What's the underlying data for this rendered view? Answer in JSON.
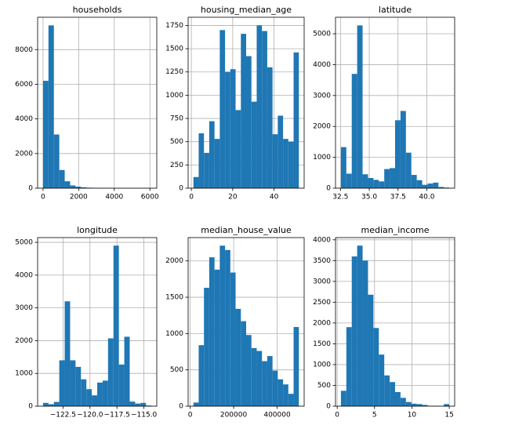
{
  "chart_data": [
    {
      "type": "histogram",
      "title": "households",
      "color": "#1f77b4",
      "grid": true,
      "bins": [
        1,
        305.05,
        609.1,
        913.15,
        1217.2,
        1521.25,
        1825.3,
        2129.35,
        2433.4,
        2737.45,
        3041.5,
        3345.55,
        3649.6,
        3953.65,
        4257.7,
        4561.75,
        4865.8,
        5169.85,
        5473.9,
        5777.95,
        6082
      ],
      "values": [
        6200,
        9400,
        3100,
        1050,
        400,
        160,
        90,
        50,
        30,
        20,
        15,
        10,
        8,
        6,
        4,
        3,
        2,
        1,
        1,
        1
      ],
      "xlim": [
        -303,
        6386
      ],
      "xticks": [
        0,
        2000,
        4000,
        6000
      ],
      "ylim": [
        0,
        9870
      ],
      "yticks": [
        0,
        2000,
        4000,
        6000,
        8000
      ]
    },
    {
      "type": "histogram",
      "title": "housing_median_age",
      "color": "#1f77b4",
      "grid": true,
      "bins": [
        1,
        3.55,
        6.1,
        8.65,
        11.2,
        13.75,
        16.3,
        18.85,
        21.4,
        23.95,
        26.5,
        29.05,
        31.6,
        34.15,
        36.7,
        39.25,
        41.8,
        44.35,
        46.9,
        49.45,
        52
      ],
      "values": [
        120,
        590,
        380,
        720,
        530,
        1700,
        1250,
        1280,
        840,
        1660,
        1420,
        930,
        1750,
        1690,
        1300,
        580,
        780,
        530,
        500,
        1460
      ],
      "xlim": [
        -1.55,
        54.55
      ],
      "xticks": [
        0,
        20,
        40
      ],
      "ylim": [
        0,
        1838
      ],
      "yticks": [
        0,
        250,
        500,
        750,
        1000,
        1250,
        1500,
        1750
      ]
    },
    {
      "type": "histogram",
      "title": "latitude",
      "color": "#1f77b4",
      "grid": true,
      "bins": [
        32.54,
        33.0105,
        33.481,
        33.9515,
        34.422,
        34.8925,
        35.363,
        35.8335,
        36.304,
        36.7745,
        37.245,
        37.7155,
        38.186,
        38.6565,
        39.127,
        39.5975,
        40.068,
        40.5385,
        41.009,
        41.4795,
        41.95
      ],
      "values": [
        1330,
        470,
        3700,
        5270,
        450,
        330,
        270,
        220,
        620,
        650,
        2200,
        2500,
        1150,
        430,
        260,
        110,
        150,
        180,
        40,
        20
      ],
      "xlim": [
        32.07,
        42.42
      ],
      "xticks": [
        32.5,
        {
          "value": 35,
          "label": "35.0"
        },
        37.5,
        {
          "value": 40,
          "label": "40.0"
        }
      ],
      "ylim": [
        0,
        5534
      ],
      "yticks": [
        0,
        1000,
        2000,
        3000,
        4000,
        5000
      ]
    },
    {
      "type": "histogram",
      "title": "longitude",
      "color": "#1f77b4",
      "grid": true,
      "bins": [
        -124.35,
        -123.848,
        -123.346,
        -122.844,
        -122.342,
        -121.84,
        -121.338,
        -120.836,
        -120.334,
        -119.832,
        -119.33,
        -118.828,
        -118.326,
        -117.824,
        -117.322,
        -116.82,
        -116.318,
        -115.816,
        -115.314,
        -114.812,
        -114.31
      ],
      "values": [
        100,
        60,
        130,
        1400,
        3200,
        1400,
        1200,
        820,
        520,
        330,
        720,
        780,
        2070,
        4900,
        1270,
        2120,
        140,
        80,
        100,
        20
      ],
      "xlim": [
        -124.85,
        -113.81
      ],
      "xticks": [
        {
          "value": -122.5,
          "label": "−122.5"
        },
        {
          "value": -120,
          "label": "−120.0"
        },
        {
          "value": -117.5,
          "label": "−117.5"
        },
        {
          "value": -115,
          "label": "−115.0"
        }
      ],
      "ylim": [
        0,
        5145
      ],
      "yticks": [
        0,
        1000,
        2000,
        3000,
        4000,
        5000
      ]
    },
    {
      "type": "histogram",
      "title": "median_house_value",
      "color": "#1f77b4",
      "grid": true,
      "bins": [
        14999,
        39249.1,
        63499.2,
        87749.3,
        111999.4,
        136249.5,
        160499.6,
        184749.7,
        208999.8,
        233249.9,
        257500,
        281750.1,
        306000.2,
        330250.3,
        354500.4,
        378750.5,
        403000.6,
        427250.7,
        451500.8,
        475750.9,
        500001
      ],
      "values": [
        50,
        840,
        1630,
        2050,
        1880,
        2210,
        2150,
        1840,
        1340,
        1170,
        980,
        800,
        760,
        620,
        690,
        490,
        370,
        300,
        170,
        1090
      ],
      "xlim": [
        -9251,
        524251
      ],
      "xticks": [
        0,
        200000,
        400000
      ],
      "ylim": [
        0,
        2321
      ],
      "yticks": [
        0,
        500,
        1000,
        1500,
        2000
      ]
    },
    {
      "type": "histogram",
      "title": "median_income",
      "color": "#1f77b4",
      "grid": true,
      "bins": [
        0.4999,
        1.22491,
        1.94992,
        2.67493,
        3.39994,
        4.12495,
        4.84996,
        5.57497,
        6.29998,
        7.02499,
        7.75,
        8.47501,
        9.20002,
        9.92503,
        10.65004,
        11.37505,
        12.10006,
        12.82507,
        13.55008,
        14.27509,
        15.0001
      ],
      "values": [
        370,
        1900,
        3600,
        3860,
        3500,
        2680,
        1880,
        1240,
        740,
        580,
        340,
        200,
        100,
        60,
        50,
        30,
        10,
        10,
        5,
        50
      ],
      "xlim": [
        -0.225,
        15.725
      ],
      "xticks": [
        0,
        5,
        10,
        15
      ],
      "ylim": [
        0,
        4053
      ],
      "yticks": [
        0,
        500,
        1000,
        1500,
        2000,
        2500,
        3000,
        3500,
        4000
      ]
    }
  ]
}
